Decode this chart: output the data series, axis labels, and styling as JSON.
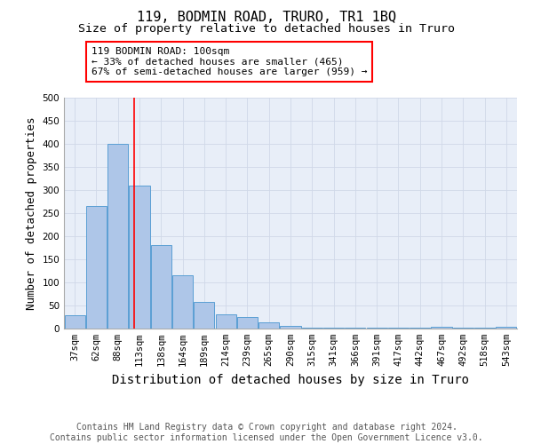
{
  "title": "119, BODMIN ROAD, TRURO, TR1 1BQ",
  "subtitle": "Size of property relative to detached houses in Truro",
  "xlabel": "Distribution of detached houses by size in Truro",
  "ylabel": "Number of detached properties",
  "footer_line1": "Contains HM Land Registry data © Crown copyright and database right 2024.",
  "footer_line2": "Contains public sector information licensed under the Open Government Licence v3.0.",
  "categories": [
    "37sqm",
    "62sqm",
    "88sqm",
    "113sqm",
    "138sqm",
    "164sqm",
    "189sqm",
    "214sqm",
    "239sqm",
    "265sqm",
    "290sqm",
    "315sqm",
    "341sqm",
    "366sqm",
    "391sqm",
    "417sqm",
    "442sqm",
    "467sqm",
    "492sqm",
    "518sqm",
    "543sqm"
  ],
  "values": [
    28,
    265,
    400,
    310,
    180,
    115,
    57,
    30,
    25,
    14,
    6,
    2,
    1,
    1,
    1,
    1,
    1,
    4,
    1,
    1,
    4
  ],
  "bar_color": "#aec6e8",
  "bar_edge_color": "#5a9fd4",
  "red_line_x": 2.75,
  "annotation_line1": "119 BODMIN ROAD: 100sqm",
  "annotation_line2": "← 33% of detached houses are smaller (465)",
  "annotation_line3": "67% of semi-detached houses are larger (959) →",
  "annotation_box_color": "white",
  "annotation_box_edge_color": "red",
  "ylim": [
    0,
    500
  ],
  "yticks": [
    0,
    50,
    100,
    150,
    200,
    250,
    300,
    350,
    400,
    450,
    500
  ],
  "background_color": "white",
  "grid_color": "#d0d8e8",
  "title_fontsize": 11,
  "subtitle_fontsize": 9.5,
  "xlabel_fontsize": 10,
  "ylabel_fontsize": 9,
  "tick_fontsize": 7.5,
  "footer_fontsize": 7,
  "annotation_fontsize": 8
}
